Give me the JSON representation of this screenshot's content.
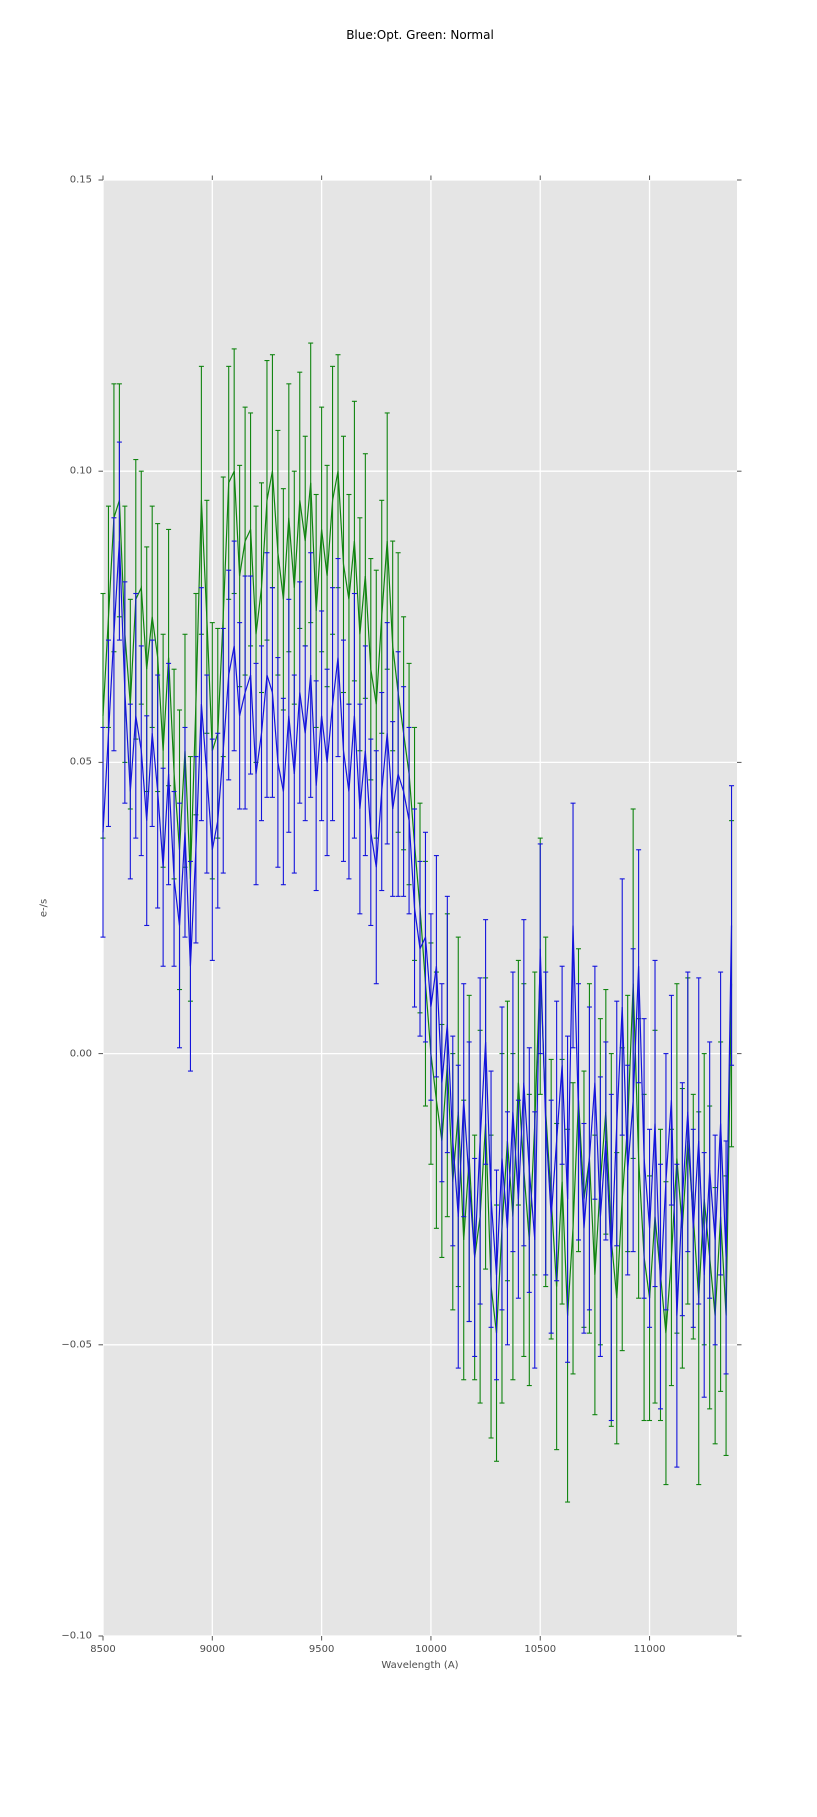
{
  "chart_data": {
    "type": "line",
    "title": "Blue:Opt. Green: Normal",
    "xlabel": "Wavelength (A)",
    "ylabel": "e-/s",
    "xlim": [
      8500,
      11400
    ],
    "ylim": [
      -0.1,
      0.15
    ],
    "grid": true,
    "legend": "none",
    "plot_bg": "#e5e5e5",
    "grid_color": "#ffffff",
    "tick_color": "#555555",
    "x_ticks": {
      "values": [
        8500,
        9000,
        9500,
        10000,
        10500,
        11000
      ],
      "labels": [
        "8500",
        "9000",
        "9500",
        "10000",
        "10500",
        "11000"
      ]
    },
    "y_ticks": {
      "values": [
        0.15,
        0.1,
        0.05,
        0.0,
        -0.05,
        -0.1
      ],
      "labels": [
        "0.15",
        "0.10",
        "0.05",
        "0.00",
        "−0.05",
        "−0.10"
      ]
    },
    "x_start": 8500,
    "x_step": 25,
    "series": [
      {
        "name": "Normal",
        "color": "#108410",
        "y": [
          0.058,
          0.075,
          0.092,
          0.095,
          0.072,
          0.06,
          0.078,
          0.08,
          0.066,
          0.075,
          0.068,
          0.052,
          0.068,
          0.048,
          0.035,
          0.052,
          0.03,
          0.06,
          0.095,
          0.075,
          0.052,
          0.055,
          0.075,
          0.098,
          0.1,
          0.082,
          0.088,
          0.09,
          0.072,
          0.08,
          0.095,
          0.1,
          0.086,
          0.078,
          0.092,
          0.08,
          0.095,
          0.088,
          0.098,
          0.076,
          0.09,
          0.082,
          0.095,
          0.1,
          0.084,
          0.078,
          0.088,
          0.072,
          0.082,
          0.066,
          0.06,
          0.075,
          0.088,
          0.07,
          0.062,
          0.055,
          0.048,
          0.036,
          0.025,
          0.012,
          0.0,
          -0.008,
          -0.015,
          -0.002,
          -0.022,
          -0.01,
          -0.032,
          -0.018,
          -0.035,
          -0.028,
          -0.012,
          -0.04,
          -0.048,
          -0.03,
          -0.015,
          -0.028,
          -0.005,
          -0.02,
          -0.032,
          -0.012,
          0.015,
          -0.01,
          -0.025,
          -0.04,
          -0.022,
          -0.045,
          -0.03,
          -0.008,
          -0.025,
          -0.018,
          -0.038,
          -0.022,
          -0.01,
          -0.032,
          -0.042,
          -0.025,
          -0.012,
          0.012,
          -0.018,
          -0.035,
          -0.042,
          -0.028,
          -0.038,
          -0.048,
          -0.035,
          -0.018,
          -0.03,
          -0.015,
          -0.028,
          -0.042,
          -0.025,
          -0.035,
          -0.045,
          -0.028,
          -0.045,
          0.012
        ],
        "yerr": [
          0.021,
          0.019,
          0.023,
          0.02,
          0.022,
          0.018,
          0.024,
          0.02,
          0.021,
          0.019,
          0.023,
          0.02,
          0.022,
          0.018,
          0.024,
          0.02,
          0.021,
          0.019,
          0.023,
          0.02,
          0.022,
          0.018,
          0.024,
          0.02,
          0.021,
          0.019,
          0.023,
          0.02,
          0.022,
          0.018,
          0.024,
          0.02,
          0.021,
          0.019,
          0.023,
          0.02,
          0.022,
          0.018,
          0.024,
          0.02,
          0.021,
          0.019,
          0.023,
          0.02,
          0.022,
          0.018,
          0.024,
          0.02,
          0.021,
          0.019,
          0.023,
          0.02,
          0.022,
          0.018,
          0.024,
          0.02,
          0.019,
          0.02,
          0.018,
          0.021,
          0.019,
          0.022,
          0.02,
          0.026,
          0.022,
          0.03,
          0.024,
          0.028,
          0.021,
          0.032,
          0.025,
          0.026,
          0.022,
          0.03,
          0.024,
          0.028,
          0.021,
          0.032,
          0.025,
          0.026,
          0.022,
          0.03,
          0.024,
          0.028,
          0.021,
          0.032,
          0.025,
          0.026,
          0.022,
          0.03,
          0.024,
          0.028,
          0.021,
          0.032,
          0.025,
          0.026,
          0.022,
          0.03,
          0.024,
          0.028,
          0.021,
          0.032,
          0.025,
          0.026,
          0.022,
          0.03,
          0.024,
          0.028,
          0.021,
          0.032,
          0.025,
          0.026,
          0.022,
          0.03,
          0.024,
          0.028
        ]
      },
      {
        "name": "Opt.",
        "color": "#1414dc",
        "y": [
          0.038,
          0.055,
          0.072,
          0.088,
          0.062,
          0.045,
          0.058,
          0.052,
          0.04,
          0.055,
          0.045,
          0.032,
          0.048,
          0.03,
          0.022,
          0.038,
          0.015,
          0.035,
          0.06,
          0.048,
          0.035,
          0.04,
          0.052,
          0.065,
          0.07,
          0.058,
          0.062,
          0.065,
          0.048,
          0.055,
          0.065,
          0.062,
          0.05,
          0.045,
          0.058,
          0.048,
          0.062,
          0.055,
          0.065,
          0.046,
          0.058,
          0.05,
          0.06,
          0.068,
          0.052,
          0.045,
          0.058,
          0.042,
          0.052,
          0.038,
          0.032,
          0.045,
          0.055,
          0.042,
          0.048,
          0.045,
          0.04,
          0.025,
          0.018,
          0.02,
          0.008,
          0.015,
          -0.005,
          0.005,
          -0.015,
          -0.028,
          -0.008,
          -0.022,
          -0.035,
          -0.015,
          0.002,
          -0.025,
          -0.038,
          -0.018,
          -0.03,
          -0.01,
          -0.025,
          -0.005,
          -0.02,
          -0.032,
          0.018,
          -0.012,
          -0.028,
          -0.015,
          -0.002,
          -0.025,
          0.022,
          -0.01,
          -0.03,
          -0.018,
          -0.005,
          -0.028,
          -0.015,
          -0.035,
          -0.012,
          0.008,
          -0.02,
          -0.008,
          0.015,
          -0.018,
          -0.03,
          -0.012,
          -0.04,
          -0.022,
          -0.008,
          -0.045,
          -0.025,
          -0.01,
          -0.03,
          -0.015,
          -0.038,
          -0.02,
          -0.032,
          -0.012,
          -0.035,
          0.022
        ],
        "yerr": [
          0.018,
          0.016,
          0.02,
          0.017,
          0.019,
          0.015,
          0.021,
          0.018,
          0.018,
          0.016,
          0.02,
          0.017,
          0.019,
          0.015,
          0.021,
          0.018,
          0.018,
          0.016,
          0.02,
          0.017,
          0.019,
          0.015,
          0.021,
          0.018,
          0.018,
          0.016,
          0.02,
          0.017,
          0.019,
          0.015,
          0.021,
          0.018,
          0.018,
          0.016,
          0.02,
          0.017,
          0.019,
          0.015,
          0.021,
          0.018,
          0.018,
          0.016,
          0.02,
          0.017,
          0.019,
          0.015,
          0.021,
          0.018,
          0.018,
          0.016,
          0.02,
          0.017,
          0.019,
          0.015,
          0.021,
          0.018,
          0.016,
          0.017,
          0.015,
          0.018,
          0.016,
          0.019,
          0.017,
          0.022,
          0.018,
          0.026,
          0.02,
          0.024,
          0.017,
          0.028,
          0.021,
          0.022,
          0.018,
          0.026,
          0.02,
          0.024,
          0.017,
          0.028,
          0.021,
          0.022,
          0.018,
          0.026,
          0.02,
          0.024,
          0.017,
          0.028,
          0.021,
          0.022,
          0.018,
          0.026,
          0.02,
          0.024,
          0.017,
          0.028,
          0.021,
          0.022,
          0.018,
          0.026,
          0.02,
          0.024,
          0.017,
          0.028,
          0.021,
          0.022,
          0.018,
          0.026,
          0.02,
          0.024,
          0.017,
          0.028,
          0.021,
          0.022,
          0.018,
          0.026,
          0.02,
          0.024
        ]
      }
    ]
  }
}
